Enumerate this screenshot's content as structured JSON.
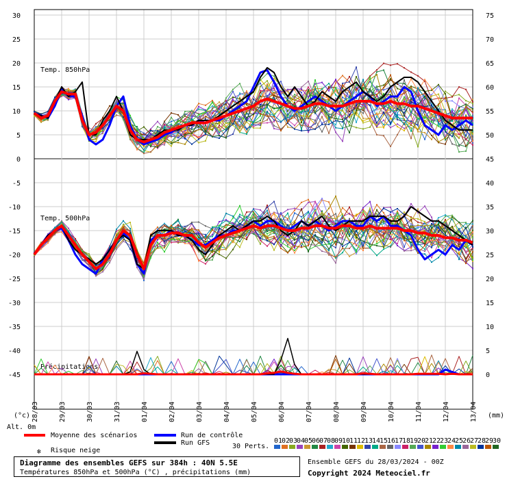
{
  "chart_data": {
    "type": "line",
    "title": "Diagramme des ensembles GEFS sur 384h : 40N 5.5E",
    "subtitle": "Températures 850hPa et 500hPa (°C) , précipitations (mm)",
    "run_label": "Ensemble GEFS du 28/03/2024 - 00Z",
    "copyright": "Copyright 2024 Meteociel.fr",
    "left_axis_unit": "(°c)",
    "right_axis_unit": "(mm)",
    "alt_label": "Alt. 0m",
    "left_ticks": [
      "30",
      "25",
      "20",
      "15",
      "10",
      "5",
      "0",
      "-5",
      "-10",
      "-15",
      "-20",
      "-25",
      "-30",
      "-35",
      "-40",
      "-45"
    ],
    "right_ticks": [
      "75",
      "70",
      "65",
      "60",
      "55",
      "50",
      "45",
      "40",
      "35",
      "30",
      "25",
      "20",
      "15",
      "10",
      "5",
      "0"
    ],
    "x_ticks": [
      "28/03",
      "29/03",
      "30/03",
      "31/03",
      "01/04",
      "02/04",
      "03/04",
      "04/04",
      "05/04",
      "06/04",
      "07/04",
      "08/04",
      "09/04",
      "10/04",
      "11/04",
      "12/04",
      "13/04"
    ],
    "panel_labels": {
      "t850": "Temp. 850hPa",
      "t500": "Temp. 500hPa",
      "precip": "Précipitations"
    },
    "legend": {
      "mean": "Moyenne des scénarios",
      "control": "Run de contrôle",
      "gfs": "Run GFS",
      "snow": "Risque neige",
      "perts": "30 Perts."
    },
    "pert_numbers": [
      "01",
      "02",
      "03",
      "04",
      "05",
      "06",
      "07",
      "08",
      "09",
      "10",
      "11",
      "12",
      "13",
      "14",
      "15",
      "16",
      "17",
      "18",
      "19",
      "20",
      "21",
      "22",
      "23",
      "24",
      "25",
      "26",
      "27",
      "28",
      "29",
      "30"
    ],
    "pert_colors": [
      "#2266cc",
      "#e07020",
      "#88aa22",
      "#9944bb",
      "#cc9933",
      "#228844",
      "#aa2222",
      "#22aacc",
      "#cc44aa",
      "#446600",
      "#773300",
      "#ddbb00",
      "#3344aa",
      "#00aa88",
      "#aa6644",
      "#666666",
      "#8888ff",
      "#cc2266",
      "#55aa55",
      "#4455cc",
      "#aa8800",
      "#7722cc",
      "#33cc33",
      "#ff8844",
      "#0088aa",
      "#996699",
      "#bbbb22",
      "#003399",
      "#bb5500",
      "#226622"
    ],
    "colors": {
      "mean": "#ff0000",
      "control": "#0000ff",
      "gfs": "#000000"
    },
    "ylim": [
      -45,
      30
    ],
    "x_steps": 64,
    "series_mean_850": [
      9.5,
      8.5,
      9,
      12,
      14,
      13.5,
      13.5,
      8,
      5,
      5.5,
      7,
      9,
      11,
      10,
      6,
      4,
      3.5,
      4,
      4.5,
      5.5,
      6,
      6.5,
      7,
      7.5,
      7.5,
      7.5,
      8,
      8.5,
      9,
      9.5,
      10,
      10.5,
      11,
      12,
      12.5,
      12,
      11.5,
      11,
      10.5,
      10.5,
      11,
      11.5,
      11.5,
      11,
      11,
      11,
      11.5,
      12,
      12,
      12,
      11.5,
      11.5,
      12,
      11.5,
      11.5,
      11,
      11,
      10.5,
      10,
      9.5,
      9,
      8.5,
      8.5,
      8.5,
      8.5
    ],
    "series_mean_500": [
      -20,
      -18,
      -16.5,
      -15,
      -14,
      -16,
      -18,
      -20,
      -21.5,
      -23,
      -22,
      -20,
      -17,
      -15,
      -16,
      -20,
      -23,
      -18,
      -16,
      -16,
      -15.5,
      -15.5,
      -16,
      -16,
      -17.5,
      -18.5,
      -17.5,
      -16.5,
      -16,
      -15.5,
      -15,
      -14.5,
      -14,
      -14.5,
      -14,
      -14,
      -14.5,
      -15,
      -15,
      -14.5,
      -14.5,
      -14,
      -14,
      -14.5,
      -14.5,
      -14,
      -14,
      -14.5,
      -14.5,
      -14,
      -14.5,
      -14.5,
      -14.5,
      -14.5,
      -15,
      -15,
      -15.5,
      -15.5,
      -16,
      -16,
      -16.5,
      -16.5,
      -17,
      -17,
      -17.5
    ],
    "series_control_850": [
      9.5,
      9,
      8.5,
      11,
      14.5,
      13,
      13,
      9,
      4,
      3,
      4,
      7,
      11,
      13,
      7,
      4,
      3,
      3.5,
      4,
      5,
      5.5,
      6.5,
      7,
      7,
      8,
      7.5,
      8,
      8,
      9,
      10,
      11,
      12,
      15,
      18,
      18.5,
      16,
      13,
      11,
      10,
      11,
      12,
      13,
      12,
      11,
      10,
      11,
      12,
      13,
      14,
      13,
      11,
      12,
      13,
      13,
      15,
      14,
      10,
      7,
      6,
      5,
      7,
      6,
      7,
      8,
      7
    ],
    "series_gfs_850": [
      9.5,
      9,
      8.5,
      12,
      15,
      13,
      14,
      16,
      5,
      5,
      8,
      10,
      13,
      10,
      5,
      4,
      4,
      4,
      5,
      6,
      6,
      6,
      7,
      7,
      8,
      8,
      8,
      9,
      10,
      11,
      12,
      13,
      14,
      17,
      19,
      18,
      15,
      13,
      15,
      13,
      11,
      12,
      14,
      13,
      12,
      14,
      15,
      16,
      14,
      13,
      12,
      13,
      15,
      16,
      17,
      17,
      16,
      14,
      12,
      10,
      8,
      7,
      6,
      6,
      6
    ],
    "series_control_500": [
      -20,
      -18,
      -16,
      -15,
      -14.5,
      -17,
      -20,
      -22,
      -23,
      -24,
      -21,
      -19,
      -17,
      -15.5,
      -17,
      -22,
      -24,
      -17,
      -16,
      -16,
      -15,
      -16,
      -16,
      -17,
      -18,
      -18,
      -17,
      -16,
      -16,
      -15,
      -15,
      -14,
      -13,
      -14,
      -13,
      -13,
      -14,
      -15,
      -14,
      -13,
      -14,
      -13,
      -14,
      -15,
      -14,
      -13,
      -13,
      -14,
      -14,
      -12,
      -13,
      -12,
      -14,
      -14,
      -15,
      -16,
      -19,
      -21,
      -20,
      -19,
      -20,
      -18,
      -19,
      -17,
      -18
    ],
    "series_gfs_500": [
      -20,
      -18,
      -16,
      -15,
      -14,
      -17,
      -19,
      -20,
      -21,
      -22,
      -21,
      -19,
      -17,
      -16,
      -17,
      -22,
      -23,
      -16,
      -15,
      -15,
      -15,
      -16,
      -16,
      -17,
      -19,
      -20,
      -18,
      -16,
      -15,
      -14,
      -15,
      -14,
      -13,
      -13,
      -12,
      -13,
      -15,
      -16,
      -15,
      -13,
      -14,
      -13,
      -12,
      -14,
      -15,
      -14,
      -13,
      -13,
      -13,
      -12,
      -12,
      -12,
      -13,
      -13,
      -12,
      -10,
      -11,
      -12,
      -13,
      -13,
      -14,
      -15,
      -16,
      -17,
      -18
    ],
    "series_mean_precip": [
      0,
      0,
      0,
      0,
      0,
      0,
      0,
      0,
      0,
      0,
      0,
      0,
      0,
      0,
      0,
      0,
      0.2,
      0.1,
      0,
      0,
      0,
      0,
      0,
      0,
      0,
      0,
      0,
      0,
      0,
      0,
      0,
      0,
      0,
      0,
      0.2,
      0.3,
      0.6,
      0.3,
      0.1,
      0,
      0,
      0,
      0,
      0,
      0,
      0,
      0,
      0,
      0.2,
      0.1,
      0,
      0,
      0,
      0,
      0,
      0,
      0.1,
      0.1,
      0.1,
      0.1,
      0,
      0.1,
      0,
      0,
      0
    ],
    "series_gfs_precip": [
      0,
      0,
      0,
      0,
      0,
      0,
      0,
      0,
      0,
      0,
      0,
      0,
      0,
      0,
      0.5,
      4.8,
      1,
      0,
      0,
      0,
      0,
      0,
      0,
      0,
      0,
      0,
      0,
      0,
      0,
      0,
      0,
      0,
      0,
      0,
      0,
      0,
      3,
      7.5,
      2,
      0,
      0,
      0,
      0,
      0,
      0,
      0,
      0,
      0,
      0,
      0,
      0,
      0,
      0,
      0,
      0,
      0,
      0,
      0,
      0,
      0,
      0,
      0,
      0,
      0,
      0
    ],
    "series_control_precip": [
      0,
      0,
      0,
      0,
      0,
      0,
      0,
      0,
      0,
      0,
      0,
      0,
      0,
      0,
      0,
      0,
      0,
      0,
      0,
      0,
      0,
      0,
      0,
      0,
      0,
      0,
      0,
      0,
      0,
      0,
      0,
      0,
      0,
      0,
      0,
      0,
      0,
      0,
      0,
      0,
      0,
      0,
      0,
      0,
      0,
      0,
      0,
      0,
      0,
      0,
      0,
      0,
      0,
      0,
      0,
      0,
      0,
      0,
      0,
      0,
      1,
      0.5,
      0,
      0,
      0
    ]
  }
}
